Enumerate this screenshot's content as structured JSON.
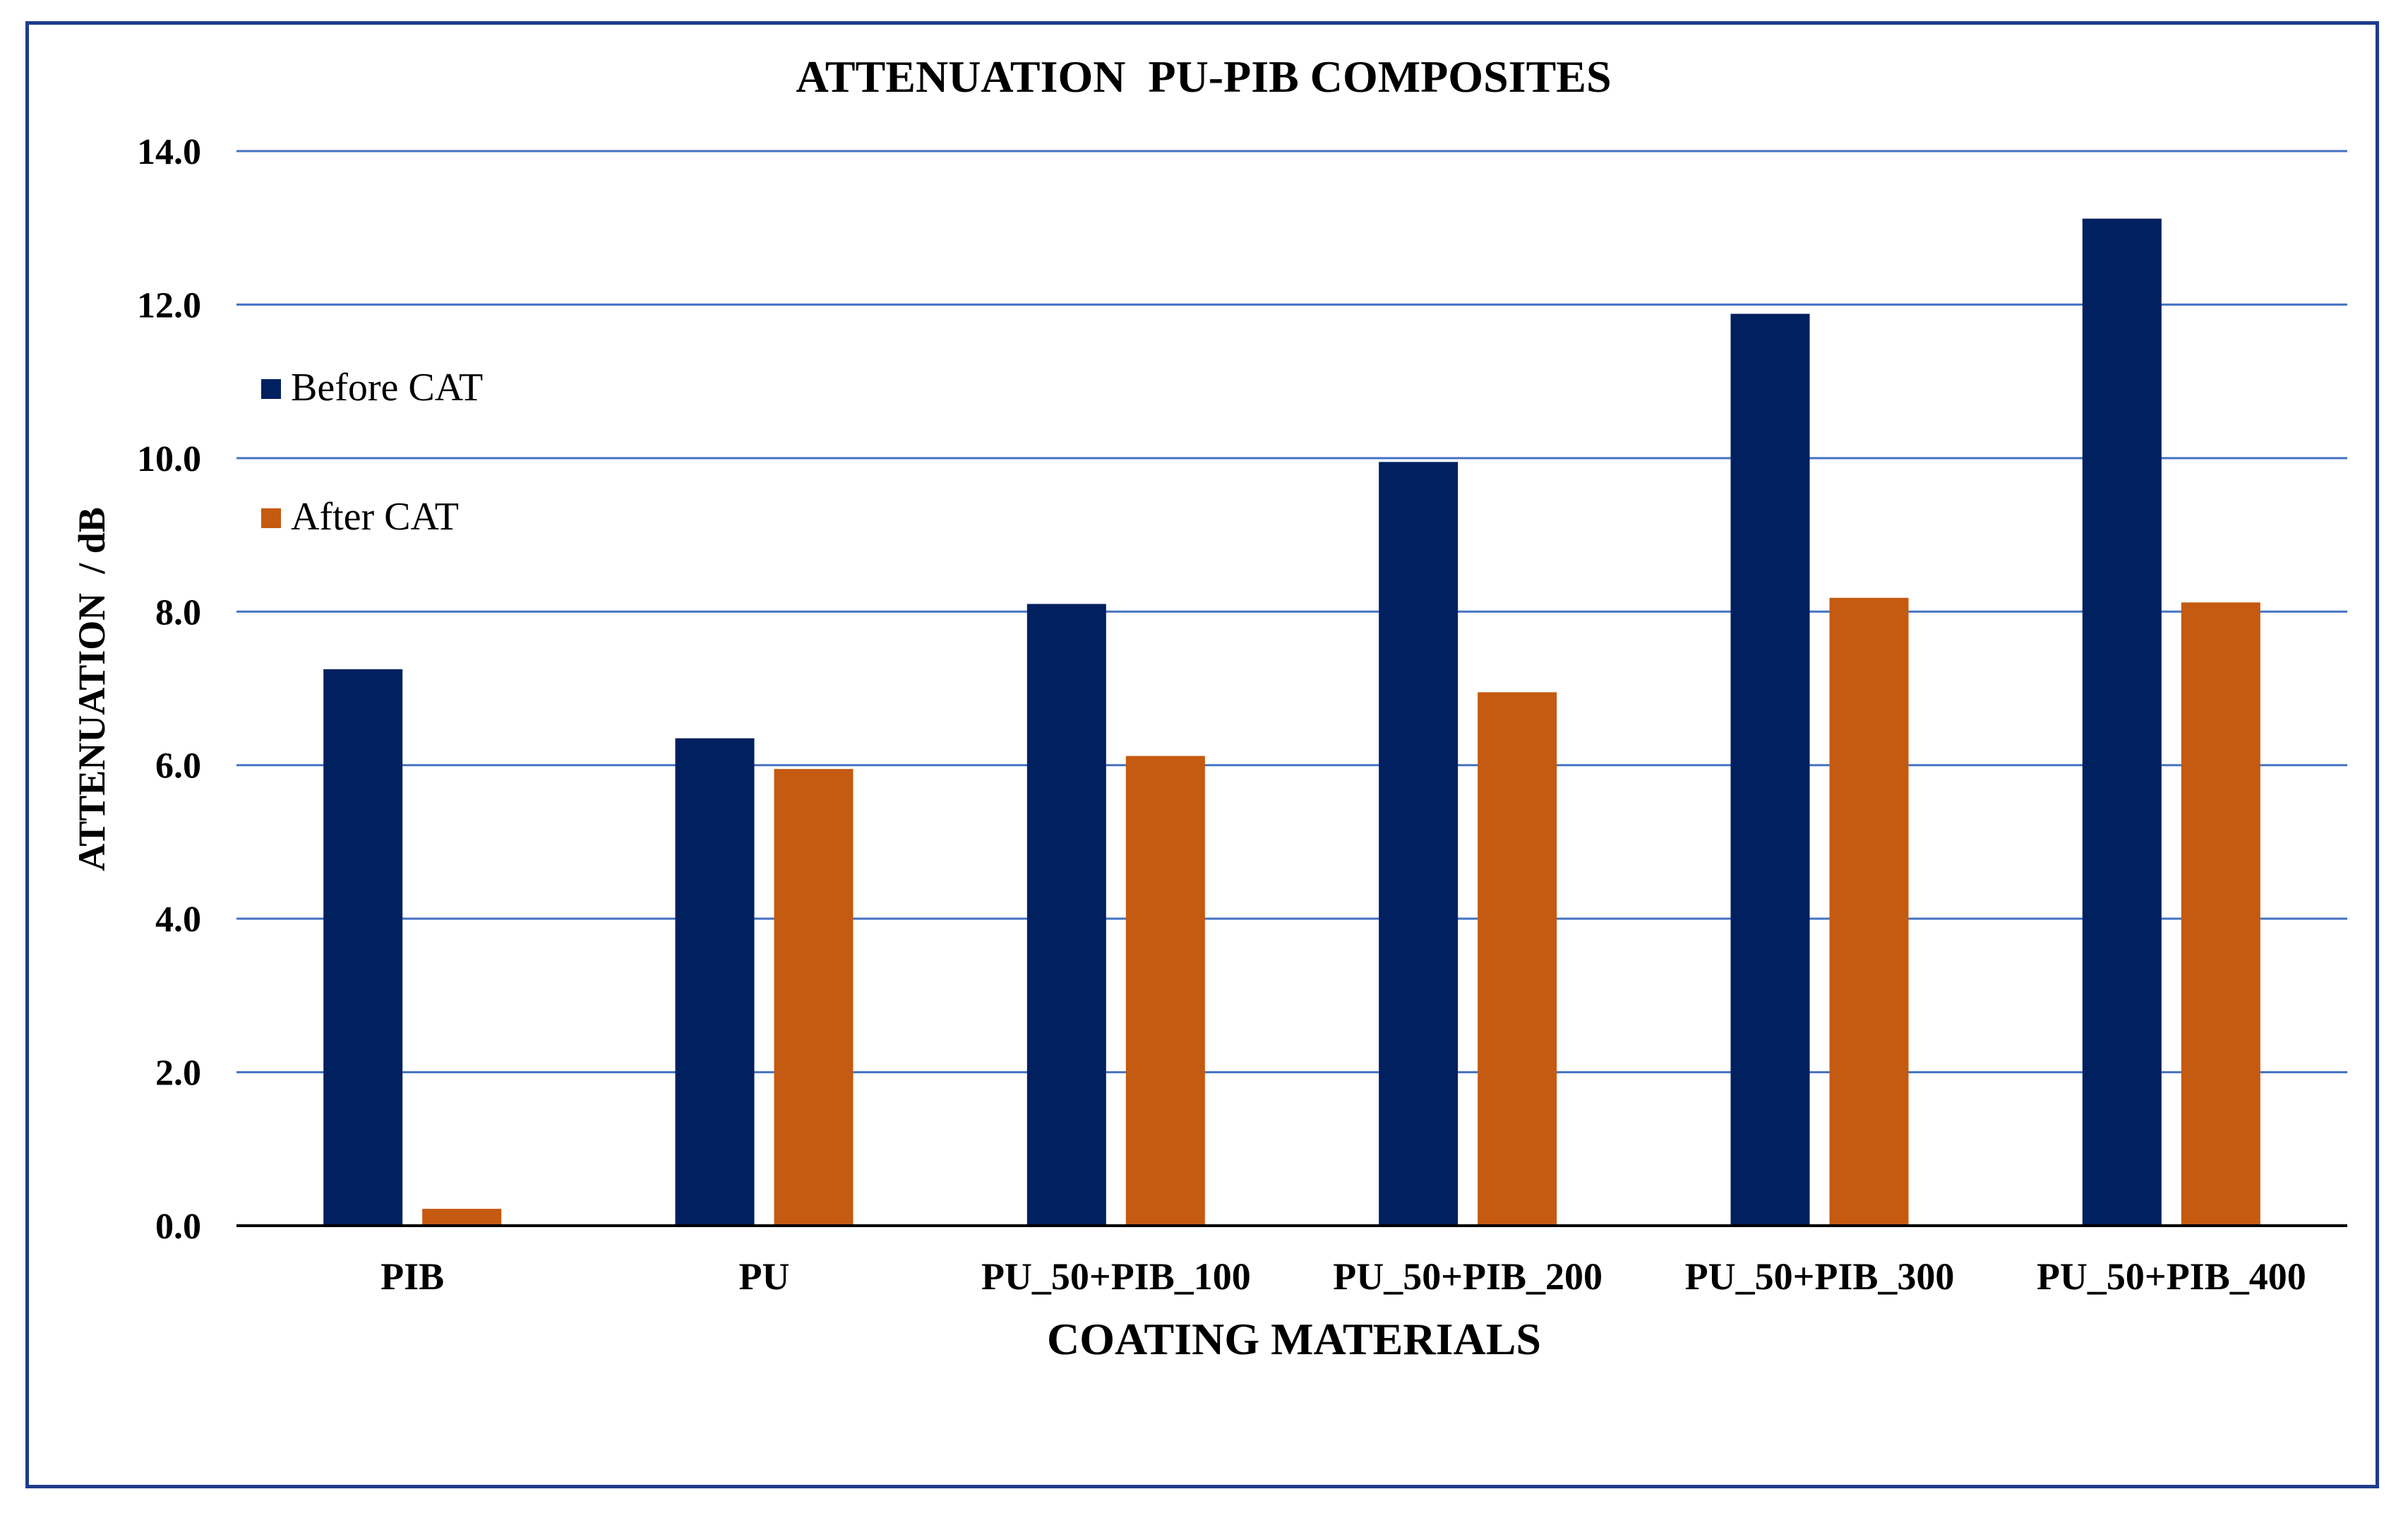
{
  "chart_data": {
    "type": "bar",
    "title": "ATTENUATION  PU-PIB COMPOSITES",
    "xlabel": "COATING MATERIALS",
    "ylabel": "ATTENUATION  / dB",
    "ylim": [
      0,
      14
    ],
    "yticks": [
      "0.0",
      "2.0",
      "4.0",
      "6.0",
      "8.0",
      "10.0",
      "12.0",
      "14.0"
    ],
    "ytick_values": [
      0,
      2,
      4,
      6,
      8,
      10,
      12,
      14
    ],
    "grid": true,
    "legend_position": "left",
    "categories": [
      "PIB",
      "PU",
      "PU_50+PIB_100",
      "PU_50+PIB_200",
      "PU_50+PIB_300",
      "PU_50+PIB_400"
    ],
    "series": [
      {
        "name": "Before CAT",
        "color": "#002060",
        "values": [
          7.25,
          6.35,
          8.1,
          9.95,
          11.88,
          13.12
        ]
      },
      {
        "name": "After CAT",
        "color": "#c55a11",
        "values": [
          0.22,
          5.95,
          6.12,
          6.95,
          8.18,
          8.12
        ]
      }
    ],
    "gridline_color": "#4472c4",
    "frame_color": "#1f3c8c"
  }
}
